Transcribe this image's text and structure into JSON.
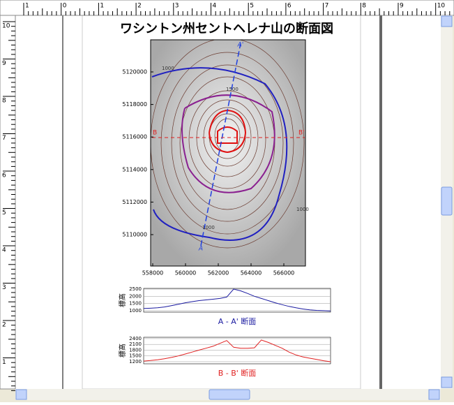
{
  "rulers": {
    "top": [
      "1",
      "0",
      "1",
      "2",
      "3",
      "4",
      "5",
      "6",
      "7",
      "8",
      "9",
      "10"
    ],
    "left": [
      "10",
      "9",
      "8",
      "7",
      "6",
      "5",
      "4",
      "3",
      "2",
      "1"
    ]
  },
  "title": "ワシントン州セントヘレナ山の断面図",
  "map": {
    "yticks": [
      "5120000",
      "5118000",
      "5116000",
      "5114000",
      "5112000",
      "5110000"
    ],
    "xticks": [
      "558000",
      "560000",
      "562000",
      "564000",
      "566000"
    ],
    "section_labels": {
      "a_start": "A",
      "a_end": "A'",
      "b_start": "B",
      "b_end": "B'"
    },
    "contour_labels": [
      "1000",
      "1500",
      "1000",
      "1000"
    ]
  },
  "profiles": [
    {
      "type": "line",
      "ylabel": "標高",
      "caption": "A - A' 断面",
      "color": "#1a1aa0",
      "ylim": [
        900,
        2550
      ],
      "yticks": [
        2500,
        2000,
        1500,
        1000
      ],
      "grid": true,
      "values": [
        1150,
        1170,
        1200,
        1260,
        1350,
        1450,
        1550,
        1630,
        1700,
        1750,
        1800,
        1850,
        1950,
        2500,
        2380,
        2200,
        2000,
        1850,
        1700,
        1550,
        1420,
        1300,
        1200,
        1120,
        1060,
        1020,
        1000,
        980
      ]
    },
    {
      "type": "line",
      "ylabel": "標高",
      "caption": "B - B' 断面",
      "color": "#e02020",
      "ylim": [
        1090,
        2470
      ],
      "yticks": [
        2400,
        2100,
        1800,
        1500,
        1200
      ],
      "grid": true,
      "values": [
        1230,
        1260,
        1300,
        1350,
        1420,
        1500,
        1600,
        1700,
        1800,
        1900,
        2000,
        2150,
        2300,
        1950,
        1900,
        1900,
        1920,
        2330,
        2200,
        2050,
        1900,
        1700,
        1550,
        1450,
        1380,
        1320,
        1250,
        1200
      ]
    }
  ]
}
